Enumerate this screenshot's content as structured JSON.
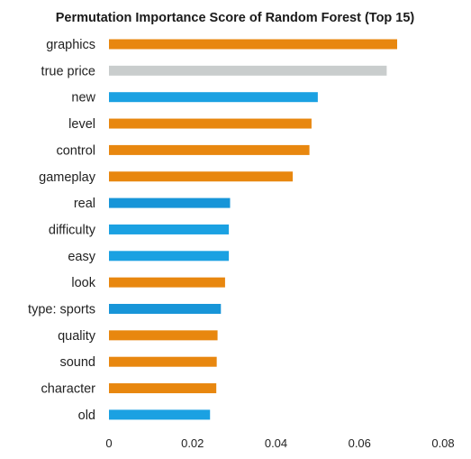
{
  "chart_data": {
    "type": "bar",
    "orientation": "horizontal",
    "title": "Permutation Importance Score of Random Forest (Top 15)",
    "xlabel": "",
    "ylabel": "",
    "categories": [
      "graphics",
      "true price",
      "new",
      "level",
      "control",
      "gameplay",
      "real",
      "difficulty",
      "easy",
      "look",
      "type: sports",
      "quality",
      "sound",
      "character",
      "old"
    ],
    "values": [
      0.069,
      0.0665,
      0.05,
      0.0485,
      0.048,
      0.044,
      0.029,
      0.0287,
      0.0287,
      0.0278,
      0.0268,
      0.026,
      0.0258,
      0.0257,
      0.0242
    ],
    "bar_colors": [
      "#E8870F",
      "#C9CDCD",
      "#1BA1E2",
      "#E8870F",
      "#E8870F",
      "#E8870F",
      "#1795D8",
      "#1BA1E2",
      "#1BA1E2",
      "#E8870F",
      "#1795D8",
      "#E8870F",
      "#E8870F",
      "#E8870F",
      "#1BA1E2"
    ],
    "xlim": [
      0,
      0.08
    ],
    "xticks": [
      0,
      0.02,
      0.04,
      0.06,
      0.08
    ],
    "xtick_labels": [
      "0",
      "0.02",
      "0.04",
      "0.06",
      "0.08"
    ],
    "grid": false,
    "legend": "none"
  }
}
